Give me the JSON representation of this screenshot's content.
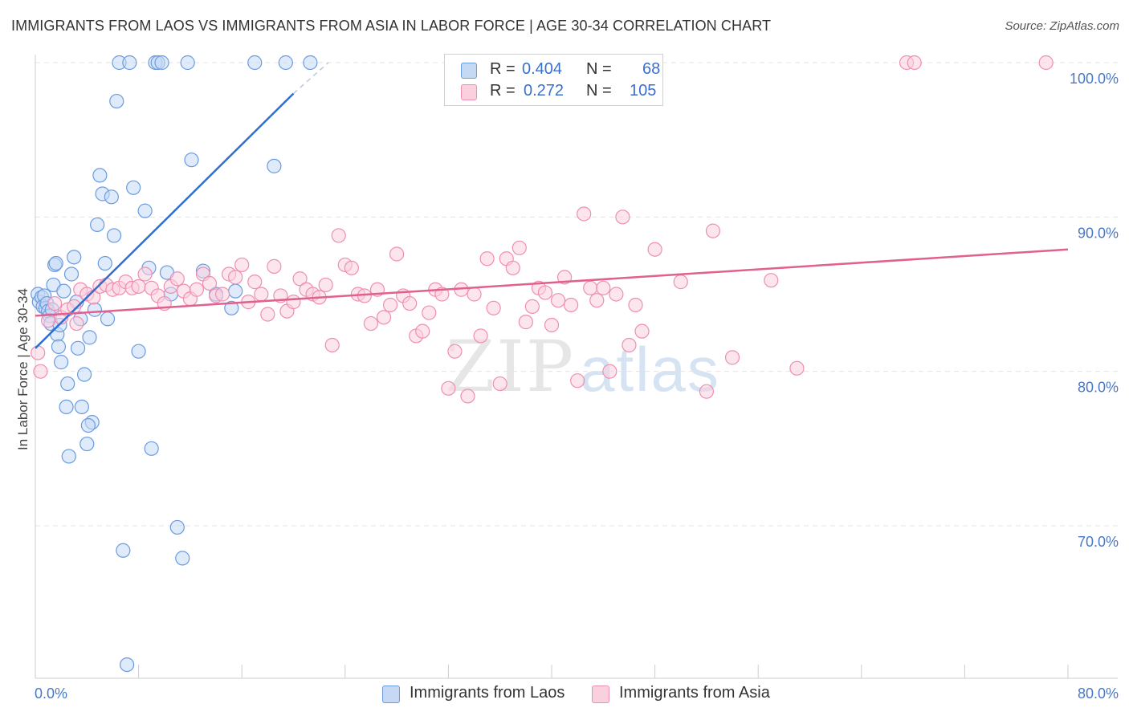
{
  "title": "IMMIGRANTS FROM LAOS VS IMMIGRANTS FROM ASIA IN LABOR FORCE | AGE 30-34 CORRELATION CHART",
  "source": "Source: ZipAtlas.com",
  "watermark": {
    "zip": "ZIP",
    "atlas": "atlas"
  },
  "legend": {
    "rows": [
      {
        "r_label": "R =",
        "r_value": "0.404",
        "n_label": "N =",
        "n_value": "68"
      },
      {
        "r_label": "R =",
        "r_value": "0.272",
        "n_label": "N =",
        "n_value": "105"
      }
    ]
  },
  "chart_data": {
    "type": "scatter",
    "title": "IMMIGRANTS FROM LAOS VS IMMIGRANTS FROM ASIA IN LABOR FORCE | AGE 30-34 CORRELATION CHART",
    "xlabel": "",
    "ylabel": "In Labor Force | Age 30-34",
    "xlim": [
      0,
      80
    ],
    "ylim": [
      60,
      100
    ],
    "x_tick_labels": [
      "0.0%",
      "80.0%"
    ],
    "y_ticks": [
      70,
      80,
      90,
      100
    ],
    "y_tick_labels": [
      "70.0%",
      "80.0%",
      "90.0%",
      "100.0%"
    ],
    "grid": true,
    "legend_position": "bottom",
    "series": [
      {
        "name": "Immigrants from Laos",
        "color": "#6a9be0",
        "fill": "#c5d9f5",
        "r": 0.404,
        "n": 68,
        "trend": {
          "x": [
            0,
            20
          ],
          "y": [
            81.5,
            98.0
          ],
          "dashed_to": [
            22.7,
            100.0
          ]
        },
        "points": [
          [
            0.2,
            85.0
          ],
          [
            0.3,
            84.5
          ],
          [
            0.5,
            84.8
          ],
          [
            0.6,
            84.2
          ],
          [
            0.7,
            84.9
          ],
          [
            0.8,
            84.1
          ],
          [
            0.9,
            84.4
          ],
          [
            1.0,
            83.9
          ],
          [
            1.1,
            83.6
          ],
          [
            1.2,
            83.1
          ],
          [
            1.3,
            84.0
          ],
          [
            1.4,
            85.6
          ],
          [
            1.5,
            86.9
          ],
          [
            1.6,
            87.0
          ],
          [
            1.7,
            82.4
          ],
          [
            1.8,
            81.6
          ],
          [
            1.9,
            83.0
          ],
          [
            2.0,
            80.6
          ],
          [
            2.2,
            85.2
          ],
          [
            2.4,
            77.7
          ],
          [
            2.5,
            79.2
          ],
          [
            2.6,
            74.5
          ],
          [
            2.8,
            86.3
          ],
          [
            3.0,
            87.4
          ],
          [
            3.2,
            84.5
          ],
          [
            3.3,
            81.5
          ],
          [
            3.5,
            83.4
          ],
          [
            3.6,
            77.7
          ],
          [
            3.8,
            79.8
          ],
          [
            4.0,
            75.3
          ],
          [
            4.2,
            82.2
          ],
          [
            4.4,
            76.7
          ],
          [
            4.6,
            84.0
          ],
          [
            4.8,
            89.5
          ],
          [
            5.0,
            92.7
          ],
          [
            5.2,
            91.5
          ],
          [
            5.4,
            87.0
          ],
          [
            5.6,
            83.4
          ],
          [
            5.9,
            91.3
          ],
          [
            6.1,
            88.8
          ],
          [
            6.3,
            97.5
          ],
          [
            6.5,
            100.0
          ],
          [
            6.8,
            68.4
          ],
          [
            7.1,
            61.0
          ],
          [
            7.3,
            100.0
          ],
          [
            7.6,
            91.9
          ],
          [
            8.0,
            81.3
          ],
          [
            8.5,
            90.4
          ],
          [
            8.8,
            86.7
          ],
          [
            9.0,
            75.0
          ],
          [
            9.3,
            100.0
          ],
          [
            9.5,
            100.0
          ],
          [
            9.8,
            100.0
          ],
          [
            10.2,
            86.4
          ],
          [
            10.5,
            85.0
          ],
          [
            11.0,
            69.9
          ],
          [
            11.4,
            67.9
          ],
          [
            11.8,
            100.0
          ],
          [
            12.1,
            93.7
          ],
          [
            13.0,
            86.5
          ],
          [
            14.0,
            85.0
          ],
          [
            15.2,
            84.1
          ],
          [
            15.5,
            85.2
          ],
          [
            17.0,
            100.0
          ],
          [
            18.5,
            93.3
          ],
          [
            19.4,
            100.0
          ],
          [
            21.3,
            100.0
          ],
          [
            4.1,
            76.5
          ]
        ]
      },
      {
        "name": "Immigrants from Asia",
        "color": "#ee8fb0",
        "fill": "#fad0de",
        "r": 0.272,
        "n": 105,
        "trend": {
          "x": [
            0,
            80
          ],
          "y": [
            83.6,
            87.9
          ]
        },
        "points": [
          [
            0.2,
            81.2
          ],
          [
            0.4,
            80.0
          ],
          [
            1.0,
            83.3
          ],
          [
            1.5,
            84.4
          ],
          [
            2.0,
            83.5
          ],
          [
            2.5,
            84.0
          ],
          [
            3.0,
            84.2
          ],
          [
            3.2,
            83.1
          ],
          [
            3.5,
            85.3
          ],
          [
            4.0,
            85.0
          ],
          [
            4.5,
            84.8
          ],
          [
            5.0,
            85.5
          ],
          [
            5.5,
            85.6
          ],
          [
            6.0,
            85.3
          ],
          [
            6.5,
            85.4
          ],
          [
            7.0,
            85.8
          ],
          [
            7.5,
            85.4
          ],
          [
            8.0,
            85.5
          ],
          [
            8.5,
            86.3
          ],
          [
            9.0,
            85.4
          ],
          [
            9.5,
            84.9
          ],
          [
            10.0,
            84.4
          ],
          [
            10.5,
            85.5
          ],
          [
            11.0,
            86.0
          ],
          [
            11.5,
            85.2
          ],
          [
            12.0,
            84.7
          ],
          [
            12.5,
            85.3
          ],
          [
            13.0,
            86.3
          ],
          [
            13.5,
            85.7
          ],
          [
            14.0,
            84.9
          ],
          [
            14.5,
            85.0
          ],
          [
            15.0,
            86.3
          ],
          [
            15.5,
            86.1
          ],
          [
            16.0,
            86.9
          ],
          [
            16.5,
            84.5
          ],
          [
            17.0,
            85.8
          ],
          [
            17.5,
            85.0
          ],
          [
            18.0,
            83.7
          ],
          [
            18.5,
            86.8
          ],
          [
            19.0,
            84.9
          ],
          [
            19.5,
            83.9
          ],
          [
            20.0,
            84.5
          ],
          [
            20.5,
            86.0
          ],
          [
            21.0,
            85.3
          ],
          [
            21.5,
            85.0
          ],
          [
            22.0,
            84.8
          ],
          [
            22.5,
            85.6
          ],
          [
            23.0,
            81.7
          ],
          [
            23.5,
            88.8
          ],
          [
            24.0,
            86.9
          ],
          [
            24.5,
            86.7
          ],
          [
            25.0,
            85.0
          ],
          [
            25.5,
            84.9
          ],
          [
            26.0,
            83.1
          ],
          [
            26.5,
            85.3
          ],
          [
            27.0,
            83.5
          ],
          [
            27.5,
            84.3
          ],
          [
            28.0,
            87.6
          ],
          [
            28.5,
            84.9
          ],
          [
            29.0,
            84.4
          ],
          [
            29.5,
            82.3
          ],
          [
            30.0,
            82.6
          ],
          [
            30.5,
            83.8
          ],
          [
            31.0,
            85.3
          ],
          [
            31.5,
            85.0
          ],
          [
            32.0,
            78.9
          ],
          [
            32.5,
            81.3
          ],
          [
            33.0,
            85.3
          ],
          [
            33.5,
            78.4
          ],
          [
            34.0,
            85.0
          ],
          [
            34.5,
            82.3
          ],
          [
            35.0,
            87.3
          ],
          [
            35.5,
            84.1
          ],
          [
            36.0,
            79.2
          ],
          [
            36.5,
            87.3
          ],
          [
            37.0,
            86.7
          ],
          [
            37.5,
            88.0
          ],
          [
            38.0,
            83.2
          ],
          [
            38.5,
            84.2
          ],
          [
            39.0,
            85.4
          ],
          [
            39.5,
            85.1
          ],
          [
            40.0,
            83.0
          ],
          [
            40.5,
            84.6
          ],
          [
            41.0,
            86.1
          ],
          [
            41.5,
            84.3
          ],
          [
            42.0,
            79.4
          ],
          [
            42.5,
            90.2
          ],
          [
            43.0,
            85.4
          ],
          [
            43.5,
            84.6
          ],
          [
            44.0,
            85.4
          ],
          [
            44.5,
            80.0
          ],
          [
            45.0,
            85.0
          ],
          [
            45.5,
            90.0
          ],
          [
            46.0,
            81.7
          ],
          [
            46.5,
            84.3
          ],
          [
            47.0,
            82.6
          ],
          [
            48.0,
            87.9
          ],
          [
            50.0,
            85.8
          ],
          [
            52.0,
            78.7
          ],
          [
            52.5,
            89.1
          ],
          [
            54.0,
            80.9
          ],
          [
            57.0,
            85.9
          ],
          [
            59.0,
            80.2
          ],
          [
            67.5,
            100.0
          ],
          [
            68.1,
            100.0
          ],
          [
            78.3,
            100.0
          ]
        ]
      }
    ]
  }
}
